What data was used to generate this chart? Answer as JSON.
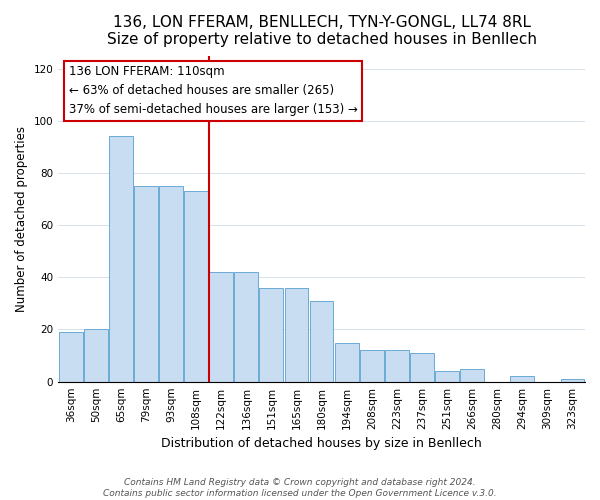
{
  "title": "136, LON FFERAM, BENLLECH, TYN-Y-GONGL, LL74 8RL",
  "subtitle": "Size of property relative to detached houses in Benllech",
  "xlabel": "Distribution of detached houses by size in Benllech",
  "ylabel": "Number of detached properties",
  "bar_labels": [
    "36sqm",
    "50sqm",
    "65sqm",
    "79sqm",
    "93sqm",
    "108sqm",
    "122sqm",
    "136sqm",
    "151sqm",
    "165sqm",
    "180sqm",
    "194sqm",
    "208sqm",
    "223sqm",
    "237sqm",
    "251sqm",
    "266sqm",
    "280sqm",
    "294sqm",
    "309sqm",
    "323sqm"
  ],
  "bar_values": [
    19,
    20,
    94,
    75,
    75,
    73,
    42,
    42,
    36,
    36,
    31,
    15,
    12,
    12,
    11,
    4,
    5,
    0,
    2,
    0,
    1
  ],
  "bar_color": "#c8ddf2",
  "bar_edge_color": "#6aaad4",
  "vline_color": "#cc0000",
  "ylim": [
    0,
    125
  ],
  "yticks": [
    0,
    20,
    40,
    60,
    80,
    100,
    120
  ],
  "annotation_title": "136 LON FFERAM: 110sqm",
  "annotation_line1": "← 63% of detached houses are smaller (265)",
  "annotation_line2": "37% of semi-detached houses are larger (153) →",
  "annotation_box_color": "#ffffff",
  "annotation_border_color": "#cc0000",
  "footer1": "Contains HM Land Registry data © Crown copyright and database right 2024.",
  "footer2": "Contains public sector information licensed under the Open Government Licence v.3.0.",
  "title_fontsize": 11,
  "xlabel_fontsize": 9,
  "ylabel_fontsize": 8.5,
  "tick_fontsize": 7.5,
  "footer_fontsize": 6.5
}
